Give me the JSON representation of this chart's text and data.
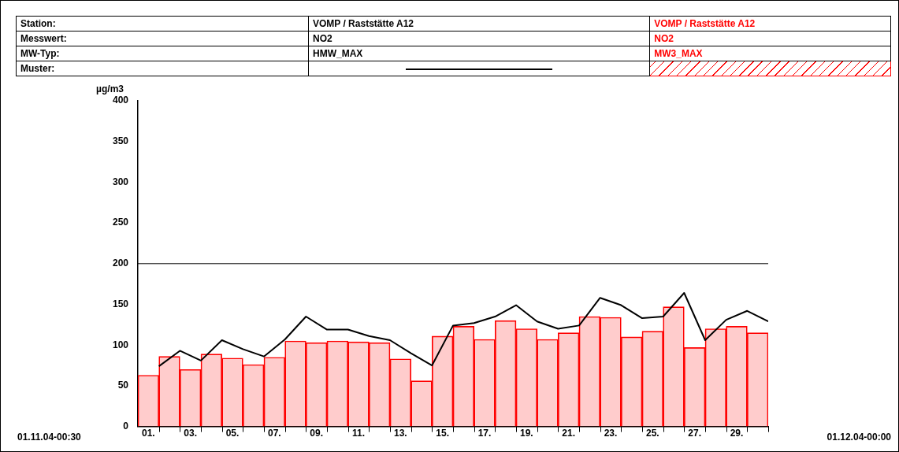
{
  "chart_data": {
    "type": "bar",
    "ylabel": "µg/m3",
    "annotations": [
      "Station:",
      "Messwert:",
      "MW-Typ:",
      "Muster:",
      "VOMP / Raststätte A12",
      "NO2",
      "VOMP / Raststätte A12",
      "NO2",
      "01.11.04-00:30",
      "01.12.04-00:00"
    ],
    "xlim": [
      0.5,
      30.5
    ],
    "xticks": [
      {
        "value": 1,
        "label": "01."
      },
      {
        "value": 1.5,
        "label": null
      },
      {
        "value": 2.5,
        "label": null
      },
      {
        "value": 3,
        "label": "03."
      },
      {
        "value": 3.5,
        "label": null
      },
      {
        "value": 4.5,
        "label": null
      },
      {
        "value": 5,
        "label": "05."
      },
      {
        "value": 5.5,
        "label": null
      },
      {
        "value": 6.5,
        "label": null
      },
      {
        "value": 7,
        "label": "07."
      },
      {
        "value": 7.5,
        "label": null
      },
      {
        "value": 8.5,
        "label": null
      },
      {
        "value": 9,
        "label": "09."
      },
      {
        "value": 9.5,
        "label": null
      },
      {
        "value": 10.5,
        "label": null
      },
      {
        "value": 11,
        "label": "11."
      },
      {
        "value": 11.5,
        "label": null
      },
      {
        "value": 12.5,
        "label": null
      },
      {
        "value": 13,
        "label": "13."
      },
      {
        "value": 13.5,
        "label": null
      },
      {
        "value": 14.5,
        "label": null
      },
      {
        "value": 15,
        "label": "15."
      },
      {
        "value": 15.5,
        "label": null
      },
      {
        "value": 16.5,
        "label": null
      },
      {
        "value": 17,
        "label": "17."
      },
      {
        "value": 17.5,
        "label": null
      },
      {
        "value": 18.5,
        "label": null
      },
      {
        "value": 19,
        "label": "19."
      },
      {
        "value": 19.5,
        "label": null
      },
      {
        "value": 20.5,
        "label": null
      },
      {
        "value": 21,
        "label": "21."
      },
      {
        "value": 21.5,
        "label": null
      },
      {
        "value": 22.5,
        "label": null
      },
      {
        "value": 23,
        "label": "23."
      },
      {
        "value": 23.5,
        "label": null
      },
      {
        "value": 24.5,
        "label": null
      },
      {
        "value": 25,
        "label": "25."
      },
      {
        "value": 25.5,
        "label": null
      },
      {
        "value": 26.5,
        "label": null
      },
      {
        "value": 27,
        "label": "27."
      },
      {
        "value": 27.5,
        "label": null
      },
      {
        "value": 28.5,
        "label": null
      },
      {
        "value": 29,
        "label": "29."
      },
      {
        "value": 29.5,
        "label": null
      },
      {
        "value": 30.5,
        "label": null
      }
    ],
    "ylim": [
      0,
      400
    ],
    "yticks": [
      0,
      50,
      100,
      150,
      200,
      250,
      300,
      350,
      400
    ],
    "grid": false,
    "legend": "top",
    "ref_lines": [
      {
        "axis": "y",
        "value": 200,
        "color": "#000000"
      }
    ],
    "series": [
      {
        "name": "HMW_MAX",
        "type": "line",
        "color": "#000000",
        "marker": "none",
        "line_style": "solid",
        "x": [
          1.5,
          2.5,
          3.5,
          4.5,
          5.5,
          6.5,
          7.5,
          8.5,
          9.5,
          10.5,
          11.5,
          12.5,
          13.5,
          14.5,
          15.5,
          16.5,
          17.5,
          18.5,
          19.5,
          20.5,
          21.5,
          22.5,
          23.5,
          24.5,
          25.5,
          26.5,
          27.5,
          28.5,
          29.5,
          30.5
        ],
        "values": [
          74,
          93,
          81,
          106,
          95,
          86,
          107,
          135,
          119,
          119,
          111,
          106,
          90,
          75,
          124,
          127,
          135,
          149,
          129,
          120,
          124,
          158,
          149,
          133,
          135,
          164,
          106,
          131,
          142,
          129
        ]
      },
      {
        "name": "MW3_MAX",
        "type": "bar",
        "color": "#ff0000",
        "x": [
          1,
          2,
          3,
          4,
          5,
          6,
          7,
          8,
          9,
          10,
          11,
          12,
          13,
          14,
          15,
          16,
          17,
          18,
          19,
          20,
          21,
          22,
          23,
          24,
          25,
          26,
          27,
          28,
          29,
          30
        ],
        "values": [
          63,
          86,
          70,
          89,
          84,
          76,
          85,
          105,
          103,
          105,
          104,
          103,
          83,
          56,
          111,
          123,
          107,
          130,
          120,
          107,
          115,
          135,
          134,
          110,
          117,
          147,
          97,
          120,
          123,
          115
        ]
      }
    ]
  }
}
